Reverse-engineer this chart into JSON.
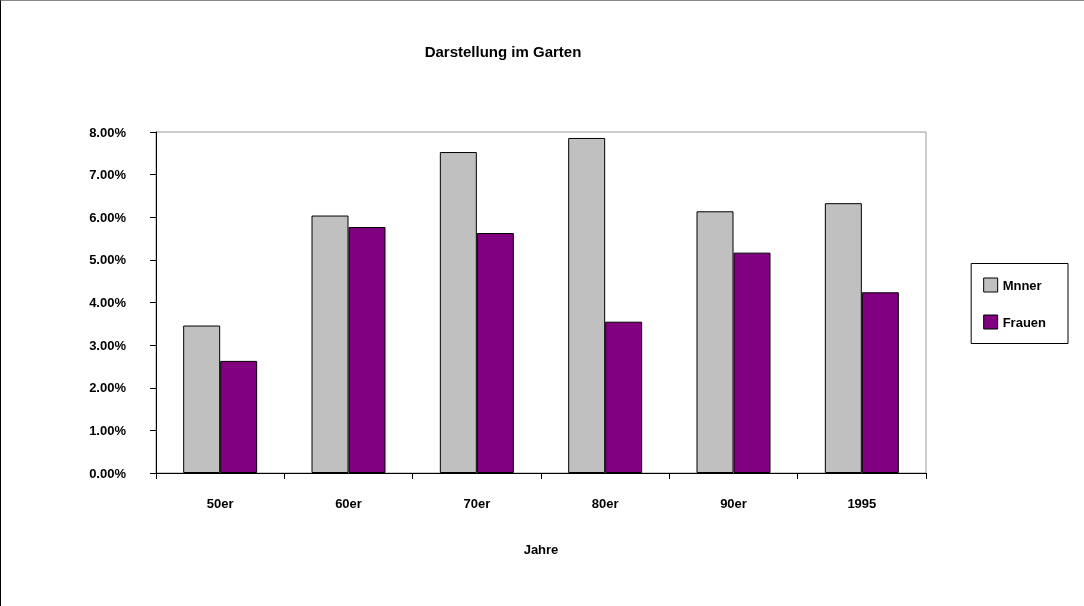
{
  "chart_data": {
    "type": "bar",
    "title": "Darstellung im Garten",
    "xlabel": "Jahre",
    "categories": [
      "50er",
      "60er",
      "70er",
      "80er",
      "90er",
      "1995"
    ],
    "series": [
      {
        "name": "Mnner",
        "color": "#c0c0c0",
        "values": [
          3.46,
          6.04,
          7.53,
          7.86,
          6.14,
          6.33
        ]
      },
      {
        "name": "Frauen",
        "color": "#800080",
        "values": [
          2.63,
          5.77,
          5.63,
          3.55,
          5.17,
          4.24
        ]
      }
    ],
    "ylim": [
      0,
      8
    ],
    "yticks": [
      {
        "value": 0,
        "label": "0.00%"
      },
      {
        "value": 1,
        "label": "1.00%"
      },
      {
        "value": 2,
        "label": "2.00%"
      },
      {
        "value": 3,
        "label": "3.00%"
      },
      {
        "value": 4,
        "label": "4.00%"
      },
      {
        "value": 5,
        "label": "5.00%"
      },
      {
        "value": 6,
        "label": "6.00%"
      },
      {
        "value": 7,
        "label": "7.00%"
      },
      {
        "value": 8,
        "label": "8.00%"
      }
    ],
    "grid": false,
    "legend": "right"
  }
}
